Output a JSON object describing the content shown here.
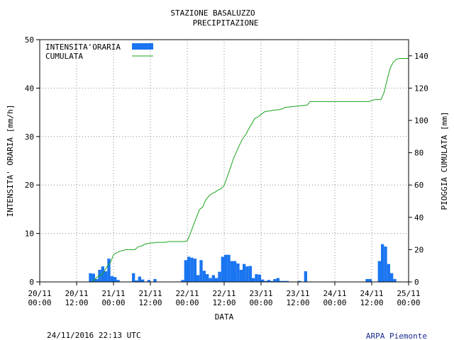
{
  "chart_data": {
    "type": "bar",
    "title": "STAZIONE BASALUZZO",
    "subtitle": "PRECIPITAZIONE",
    "xlabel": "DATA",
    "ylabel": "INTENSITA' ORARIA [mm/h]",
    "ylabel_right": "PIOGGIA CUMULATA [mm]",
    "ylim": [
      0,
      50
    ],
    "ylim_right": [
      0,
      150
    ],
    "yticks": [
      "0",
      "10",
      "20",
      "30",
      "40",
      "50"
    ],
    "yticks_right": [
      "0",
      "20",
      "40",
      "60",
      "80",
      "100",
      "120",
      "140"
    ],
    "xlim_hours": [
      0,
      120
    ],
    "xticks": [
      {
        "hour": 0,
        "date": "20/11",
        "time": "00:00"
      },
      {
        "hour": 12,
        "date": "20/11",
        "time": "12:00"
      },
      {
        "hour": 24,
        "date": "21/11",
        "time": "00:00"
      },
      {
        "hour": 36,
        "date": "21/11",
        "time": "12:00"
      },
      {
        "hour": 48,
        "date": "22/11",
        "time": "00:00"
      },
      {
        "hour": 60,
        "date": "22/11",
        "time": "12:00"
      },
      {
        "hour": 72,
        "date": "23/11",
        "time": "00:00"
      },
      {
        "hour": 84,
        "date": "23/11",
        "time": "12:00"
      },
      {
        "hour": 96,
        "date": "24/11",
        "time": "00:00"
      },
      {
        "hour": 108,
        "date": "24/11",
        "time": "12:00"
      },
      {
        "hour": 120,
        "date": "25/11",
        "time": "00:00"
      }
    ],
    "legend": [
      {
        "name": "INTENSITA'ORARIA",
        "kind": "bar",
        "color": "#1a75f0"
      },
      {
        "name": "CUMULATA",
        "kind": "line",
        "color": "#1aa31a"
      }
    ],
    "legend_position": "top-left",
    "grid": true,
    "series": [
      {
        "name": "INTENSITA'ORARIA",
        "axis": "left",
        "x": [
          17,
          18,
          19,
          20,
          21,
          22,
          23,
          24,
          25,
          26,
          31,
          32,
          33,
          34,
          36,
          38,
          47,
          48,
          49,
          50,
          51,
          52,
          53,
          54,
          55,
          56,
          57,
          58,
          59,
          60,
          61,
          62,
          63,
          64,
          65,
          66,
          67,
          68,
          69,
          70,
          71,
          72,
          73,
          74,
          75,
          76,
          77,
          78,
          79,
          80,
          81,
          85,
          87,
          107,
          108,
          111,
          112,
          113,
          114,
          115,
          116
        ],
        "values": [
          1.8,
          1.7,
          0.6,
          2.5,
          3.2,
          2.2,
          4.8,
          1.2,
          1.0,
          0.4,
          1.8,
          0.3,
          1.1,
          0.5,
          0.4,
          0.6,
          0.4,
          4.5,
          5.2,
          5.0,
          4.8,
          1.4,
          4.5,
          2.3,
          1.6,
          0.8,
          1.4,
          0.8,
          2.1,
          5.2,
          5.6,
          5.6,
          4.3,
          4.3,
          3.8,
          2.5,
          3.7,
          3.2,
          3.3,
          0.8,
          1.6,
          1.5,
          0.5,
          0.2,
          0.4,
          0.2,
          0.6,
          0.8,
          0.2,
          0.2,
          0.2,
          0.2,
          2.2,
          0.6,
          0.6,
          4.3,
          7.8,
          7.3,
          3.7,
          1.8,
          0.6
        ]
      },
      {
        "name": "CUMULATA",
        "axis": "right",
        "x": [
          0,
          17,
          18,
          19,
          20,
          21,
          22,
          23,
          24,
          25,
          26,
          27,
          28,
          29,
          30,
          31,
          32,
          33,
          34,
          35,
          36,
          37,
          38,
          39,
          40,
          41,
          42,
          43,
          44,
          45,
          46,
          47,
          48,
          49,
          50,
          51,
          52,
          53,
          54,
          55,
          56,
          57,
          58,
          59,
          60,
          61,
          62,
          63,
          64,
          65,
          66,
          67,
          68,
          69,
          70,
          71,
          72,
          73,
          74,
          75,
          76,
          77,
          78,
          79,
          80,
          81,
          82,
          83,
          84,
          85,
          86,
          87,
          88,
          89,
          90,
          91,
          92,
          93,
          94,
          95,
          96,
          97,
          98,
          99,
          100,
          101,
          102,
          103,
          104,
          105,
          106,
          107,
          108,
          109,
          110,
          111,
          112,
          113,
          114,
          115,
          116,
          117,
          118,
          119,
          120
        ],
        "values": [
          0,
          0,
          1.8,
          3.5,
          4.1,
          6.6,
          9.8,
          12,
          16.8,
          18,
          19,
          19.4,
          20,
          20,
          20,
          20,
          21.8,
          22.1,
          23.2,
          23.7,
          24.1,
          24.1,
          24.5,
          24.5,
          24.5,
          24.5,
          25,
          25,
          25,
          25,
          25,
          25,
          25.4,
          29.9,
          35.1,
          40.1,
          44.9,
          46.3,
          50.8,
          53.1,
          54.7,
          55.5,
          56.9,
          57.7,
          59.8,
          65,
          70.6,
          76.2,
          80.5,
          84.8,
          88.6,
          91.1,
          94.8,
          98,
          101.3,
          102.1,
          103.7,
          105.2,
          105.7,
          105.9,
          106.3,
          106.5,
          106.7,
          107.3,
          108.1,
          108.3,
          108.5,
          108.7,
          108.9,
          109.1,
          109.3,
          109.5,
          111.7,
          111.7,
          111.7,
          111.7,
          111.7,
          111.7,
          111.7,
          111.7,
          111.7,
          111.7,
          111.7,
          111.7,
          111.7,
          111.7,
          111.7,
          111.7,
          111.7,
          111.7,
          111.7,
          111.7,
          112.3,
          112.9,
          112.9,
          112.9,
          117.2,
          125,
          132.3,
          136,
          137.8,
          138.4,
          138.4,
          138.4,
          138.4
        ]
      }
    ]
  },
  "footer": {
    "timestamp": "24/11/2016 22:13 UTC",
    "credit": "ARPA Piemonte"
  },
  "colors": {
    "bars": "#1a75f0",
    "line": "#1aa31a",
    "grid": "#888888",
    "credit": "#1a2a8c"
  }
}
